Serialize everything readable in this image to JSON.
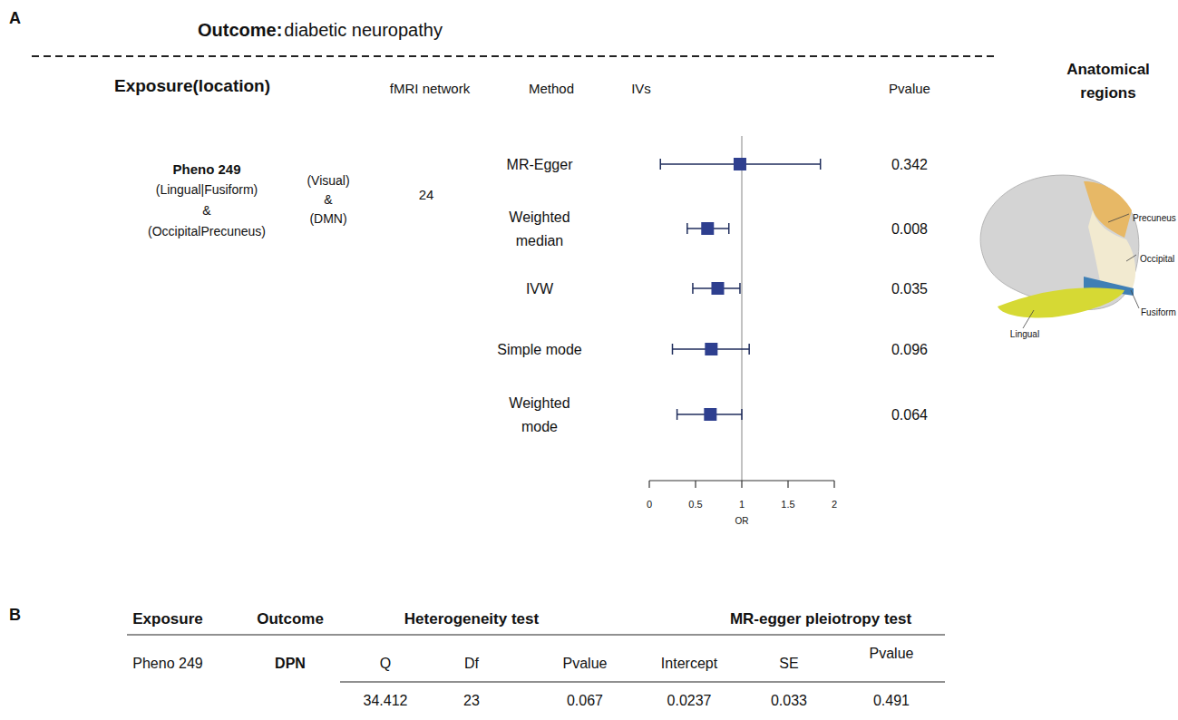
{
  "chart_data": {
    "type": "forest",
    "panel_label": "A",
    "title_prefix": "Outcome:",
    "title": "diabetic neuropathy",
    "headers": {
      "exposure": "Exposure(location)",
      "network": "fMRI network",
      "method": "Method",
      "ivs": "IVs",
      "pvalue": "Pvalue",
      "regions": "Anatomical regions"
    },
    "exposure": {
      "name": "Pheno 249",
      "location": [
        "(Lingual|Fusiform)",
        "&",
        "(OccipitalPrecuneus)"
      ],
      "network": [
        "(Visual)",
        "&",
        "(DMN)"
      ],
      "ivs": 24
    },
    "categories": [
      "MR-Egger",
      "Weighted median",
      "IVW",
      "Simple mode",
      "Weighted mode"
    ],
    "values": [
      0.98,
      0.63,
      0.74,
      0.67,
      0.66
    ],
    "ci_lower": [
      0.12,
      0.41,
      0.47,
      0.25,
      0.3
    ],
    "ci_upper": [
      1.85,
      0.86,
      0.98,
      1.08,
      1.0
    ],
    "p_values": [
      0.342,
      0.008,
      0.035,
      0.096,
      0.064
    ],
    "color": "#2e3f8f",
    "xlabel": "OR",
    "xlim": [
      0,
      2
    ],
    "xticks": [
      0,
      0.5,
      1,
      1.5,
      2
    ],
    "reference_line": 1,
    "regions": [
      "Precuneus",
      "Occipital",
      "Fusiform",
      "Lingual"
    ]
  },
  "table": {
    "panel_label": "B",
    "headers": [
      "Exposure",
      "Outcome",
      "Heterogeneity test",
      "MR-egger pleiotropy test"
    ],
    "subheaders": [
      "Q",
      "Df",
      "Pvalue",
      "Intercept",
      "SE",
      "Pvalue"
    ],
    "rows": [
      [
        "Pheno 249",
        "DPN",
        34.412,
        23,
        0.067,
        0.0237,
        0.033,
        0.491
      ]
    ]
  }
}
